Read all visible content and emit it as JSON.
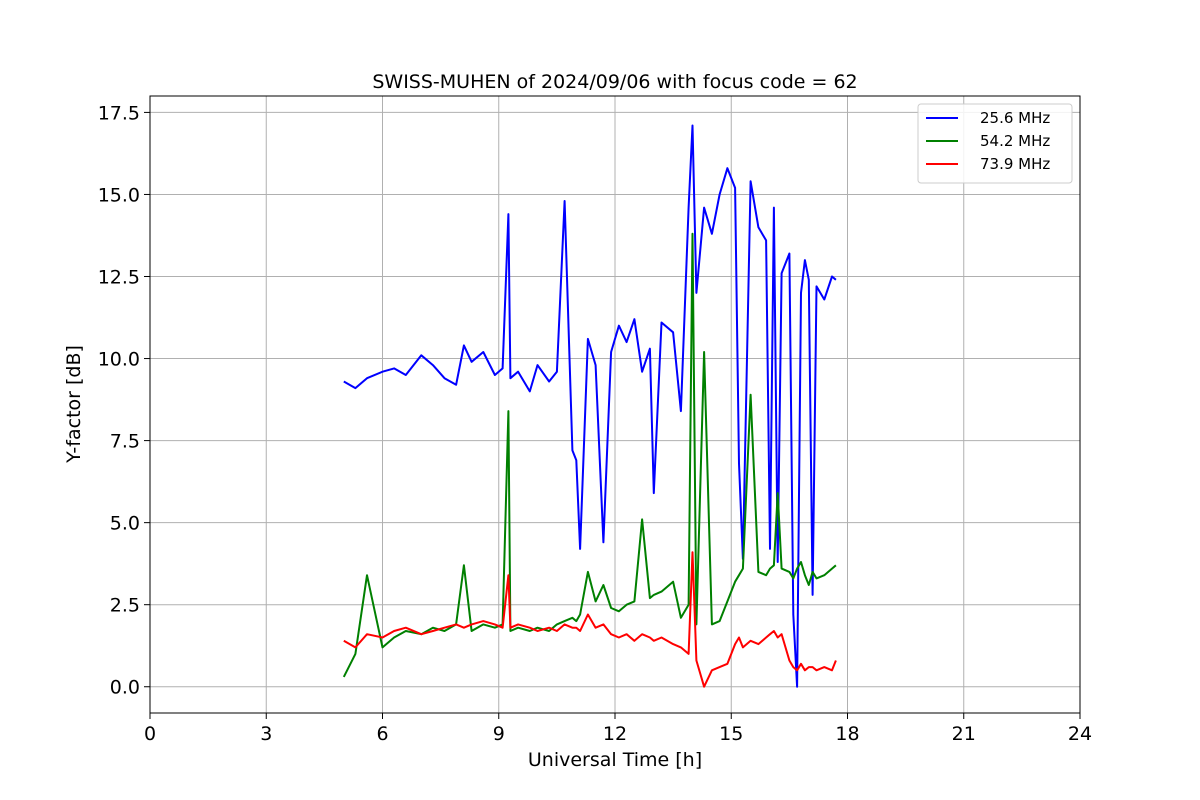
{
  "chart_data": {
    "type": "line",
    "title": "SWISS-MUHEN of 2024/09/06 with focus code = 62",
    "xlabel": "Universal Time [h]",
    "ylabel": "Y-factor [dB]",
    "xlim": [
      0,
      24
    ],
    "ylim": [
      -0.8,
      18.0
    ],
    "xticks": [
      0,
      3,
      6,
      9,
      12,
      15,
      18,
      21,
      24
    ],
    "xtick_labels": [
      "0",
      "3",
      "6",
      "9",
      "12",
      "15",
      "18",
      "21",
      "24"
    ],
    "yticks": [
      0.0,
      2.5,
      5.0,
      7.5,
      10.0,
      12.5,
      15.0,
      17.5
    ],
    "ytick_labels": [
      "0.0",
      "2.5",
      "5.0",
      "7.5",
      "10.0",
      "12.5",
      "15.0",
      "17.5"
    ],
    "grid": true,
    "legend_position": "top-right",
    "series": [
      {
        "name": "25.6 MHz",
        "color": "#0000ff",
        "x": [
          5.0,
          5.3,
          5.6,
          6.0,
          6.3,
          6.6,
          7.0,
          7.3,
          7.6,
          7.9,
          8.1,
          8.3,
          8.6,
          8.9,
          9.1,
          9.25,
          9.3,
          9.5,
          9.8,
          10.0,
          10.3,
          10.5,
          10.7,
          10.9,
          11.0,
          11.1,
          11.3,
          11.5,
          11.7,
          11.9,
          12.1,
          12.3,
          12.5,
          12.7,
          12.9,
          13.0,
          13.2,
          13.5,
          13.7,
          13.9,
          14.0,
          14.1,
          14.3,
          14.5,
          14.7,
          14.9,
          15.1,
          15.2,
          15.3,
          15.5,
          15.7,
          15.9,
          16.0,
          16.1,
          16.2,
          16.3,
          16.5,
          16.6,
          16.7,
          16.8,
          16.9,
          17.0,
          17.1,
          17.2,
          17.4,
          17.6,
          17.7
        ],
        "y": [
          9.3,
          9.1,
          9.4,
          9.6,
          9.7,
          9.5,
          10.1,
          9.8,
          9.4,
          9.2,
          10.4,
          9.9,
          10.2,
          9.5,
          9.7,
          14.4,
          9.4,
          9.6,
          9.0,
          9.8,
          9.3,
          9.6,
          14.8,
          7.2,
          6.9,
          4.2,
          10.6,
          9.8,
          4.4,
          10.2,
          11.0,
          10.5,
          11.2,
          9.6,
          10.3,
          5.9,
          11.1,
          10.8,
          8.4,
          14.6,
          17.1,
          12.0,
          14.6,
          13.8,
          15.0,
          15.8,
          15.2,
          6.8,
          3.9,
          15.4,
          14.0,
          13.6,
          4.2,
          14.6,
          3.8,
          12.6,
          13.2,
          2.2,
          0.0,
          12.0,
          13.0,
          12.4,
          2.8,
          12.2,
          11.8,
          12.5,
          12.4
        ]
      },
      {
        "name": "54.2 MHz",
        "color": "#008000",
        "x": [
          5.0,
          5.3,
          5.6,
          6.0,
          6.3,
          6.6,
          7.0,
          7.3,
          7.6,
          7.9,
          8.1,
          8.3,
          8.6,
          8.9,
          9.1,
          9.25,
          9.3,
          9.5,
          9.8,
          10.0,
          10.3,
          10.5,
          10.7,
          10.9,
          11.0,
          11.1,
          11.3,
          11.5,
          11.7,
          11.9,
          12.1,
          12.3,
          12.5,
          12.7,
          12.9,
          13.0,
          13.2,
          13.5,
          13.7,
          13.9,
          14.0,
          14.1,
          14.3,
          14.5,
          14.7,
          14.9,
          15.1,
          15.2,
          15.3,
          15.5,
          15.7,
          15.9,
          16.0,
          16.1,
          16.2,
          16.3,
          16.5,
          16.6,
          16.7,
          16.8,
          16.9,
          17.0,
          17.1,
          17.2,
          17.4,
          17.6,
          17.7
        ],
        "y": [
          0.3,
          1.0,
          3.4,
          1.2,
          1.5,
          1.7,
          1.6,
          1.8,
          1.7,
          1.9,
          3.7,
          1.7,
          1.9,
          1.8,
          1.9,
          8.4,
          1.7,
          1.8,
          1.7,
          1.8,
          1.7,
          1.9,
          2.0,
          2.1,
          2.0,
          2.2,
          3.5,
          2.6,
          3.1,
          2.4,
          2.3,
          2.5,
          2.6,
          5.1,
          2.7,
          2.8,
          2.9,
          3.2,
          2.1,
          2.5,
          13.8,
          1.9,
          10.2,
          1.9,
          2.0,
          2.6,
          3.2,
          3.4,
          3.6,
          8.9,
          3.5,
          3.4,
          3.6,
          3.7,
          5.9,
          3.6,
          3.5,
          3.3,
          3.6,
          3.8,
          3.4,
          3.1,
          3.5,
          3.3,
          3.4,
          3.6,
          3.7
        ]
      },
      {
        "name": "73.9 MHz",
        "color": "#ff0000",
        "x": [
          5.0,
          5.3,
          5.6,
          6.0,
          6.3,
          6.6,
          7.0,
          7.3,
          7.6,
          7.9,
          8.1,
          8.3,
          8.6,
          8.9,
          9.1,
          9.25,
          9.3,
          9.5,
          9.8,
          10.0,
          10.3,
          10.5,
          10.7,
          10.9,
          11.0,
          11.1,
          11.3,
          11.5,
          11.7,
          11.9,
          12.1,
          12.3,
          12.5,
          12.7,
          12.9,
          13.0,
          13.2,
          13.5,
          13.7,
          13.9,
          14.0,
          14.1,
          14.3,
          14.5,
          14.7,
          14.9,
          15.1,
          15.2,
          15.3,
          15.5,
          15.7,
          15.9,
          16.0,
          16.1,
          16.2,
          16.3,
          16.5,
          16.6,
          16.7,
          16.8,
          16.9,
          17.0,
          17.1,
          17.2,
          17.4,
          17.6,
          17.7
        ],
        "y": [
          1.4,
          1.2,
          1.6,
          1.5,
          1.7,
          1.8,
          1.6,
          1.7,
          1.8,
          1.9,
          1.8,
          1.9,
          2.0,
          1.9,
          1.8,
          3.4,
          1.8,
          1.9,
          1.8,
          1.7,
          1.8,
          1.7,
          1.9,
          1.8,
          1.8,
          1.7,
          2.2,
          1.8,
          1.9,
          1.6,
          1.5,
          1.6,
          1.4,
          1.6,
          1.5,
          1.4,
          1.5,
          1.3,
          1.2,
          1.0,
          4.1,
          0.8,
          0.0,
          0.5,
          0.6,
          0.7,
          1.3,
          1.5,
          1.2,
          1.4,
          1.3,
          1.5,
          1.6,
          1.7,
          1.5,
          1.6,
          0.8,
          0.6,
          0.5,
          0.7,
          0.5,
          0.6,
          0.6,
          0.5,
          0.6,
          0.5,
          0.8
        ]
      }
    ]
  }
}
